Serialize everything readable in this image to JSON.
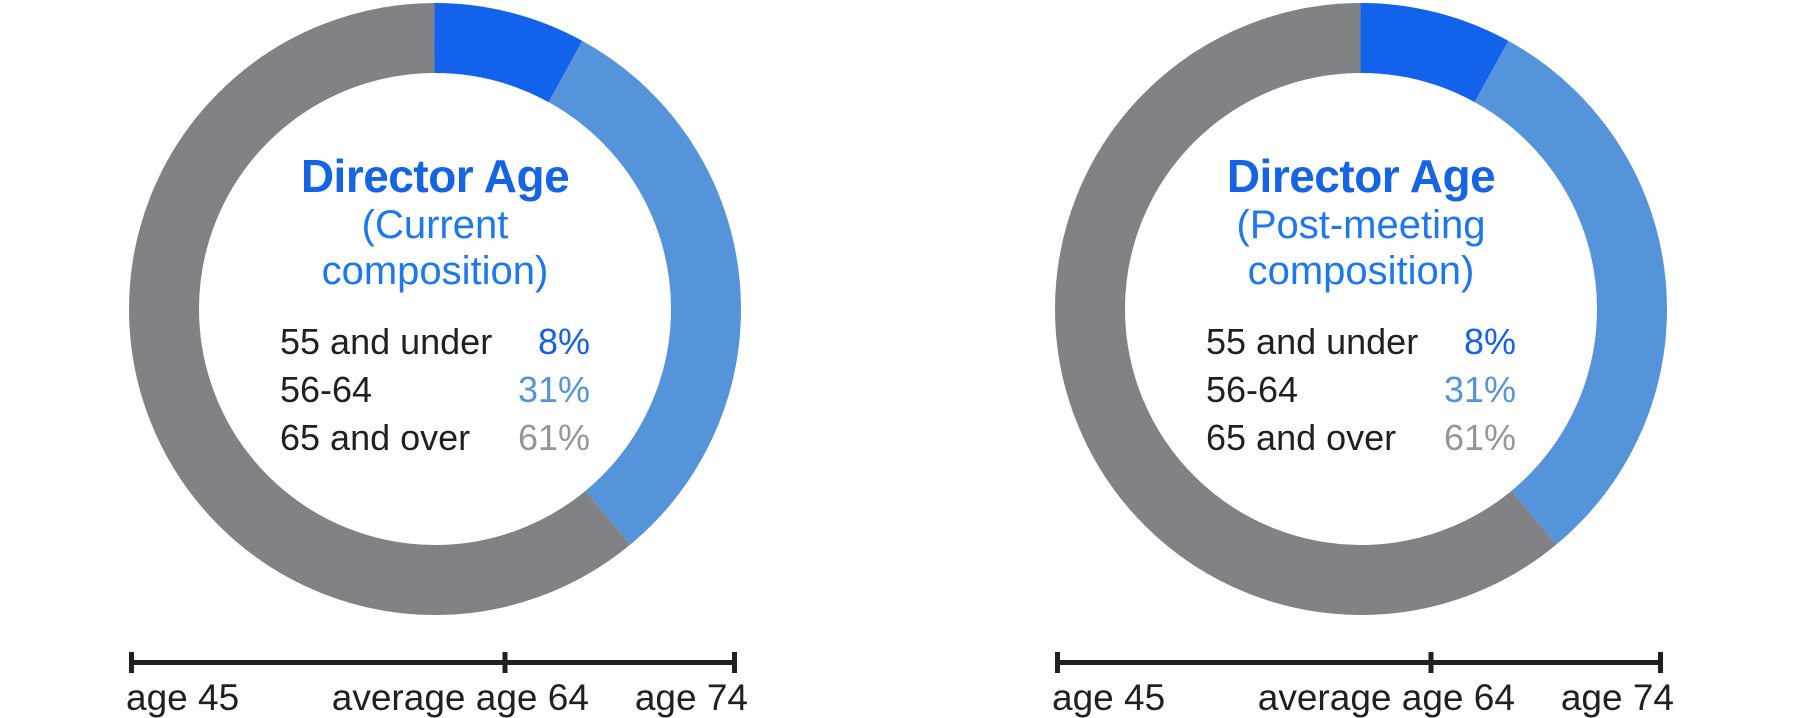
{
  "page": {
    "background": "#ffffff"
  },
  "styles": {
    "title_color": "#1464e4",
    "subtitle_color": "#1c78ee",
    "legend_label_color": "#231f20",
    "axis_color": "#231f20"
  },
  "chart_data": [
    {
      "type": "pie",
      "variant": "donut",
      "title": "Director Age",
      "subtitle": "(Current composition)",
      "subtitle_lines": [
        "(Current",
        "composition)"
      ],
      "categories": [
        "55 and under",
        "56-64",
        "65 and over"
      ],
      "values": [
        8,
        31,
        61
      ],
      "value_labels": [
        "8%",
        "31%",
        "61%"
      ],
      "slice_colors": [
        "#1262ec",
        "#5594db",
        "#808285"
      ],
      "value_text_colors": [
        "#1262ec",
        "#5594db",
        "#94969a"
      ],
      "start_angle_deg": 0,
      "direction": "clockwise",
      "legend_position": "center",
      "axis": {
        "labels": [
          "age 45",
          "average age 64",
          "age 74"
        ],
        "age_range": [
          45,
          74
        ],
        "average_age": 64,
        "mid_fraction": 0.618,
        "mid_label_fraction": 0.545
      }
    },
    {
      "type": "pie",
      "variant": "donut",
      "title": "Director Age",
      "subtitle": "(Post-meeting composition)",
      "subtitle_lines": [
        "(Post-meeting",
        "composition)"
      ],
      "categories": [
        "55 and under",
        "56-64",
        "65 and over"
      ],
      "values": [
        8,
        31,
        61
      ],
      "value_labels": [
        "8%",
        "31%",
        "61%"
      ],
      "slice_colors": [
        "#1262ec",
        "#5594db",
        "#808285"
      ],
      "value_text_colors": [
        "#1262ec",
        "#5594db",
        "#94969a"
      ],
      "start_angle_deg": 0,
      "direction": "clockwise",
      "legend_position": "center",
      "axis": {
        "labels": [
          "age 45",
          "average age 64",
          "age 74"
        ],
        "age_range": [
          45,
          74
        ],
        "average_age": 64,
        "mid_fraction": 0.618,
        "mid_label_fraction": 0.545
      }
    }
  ]
}
